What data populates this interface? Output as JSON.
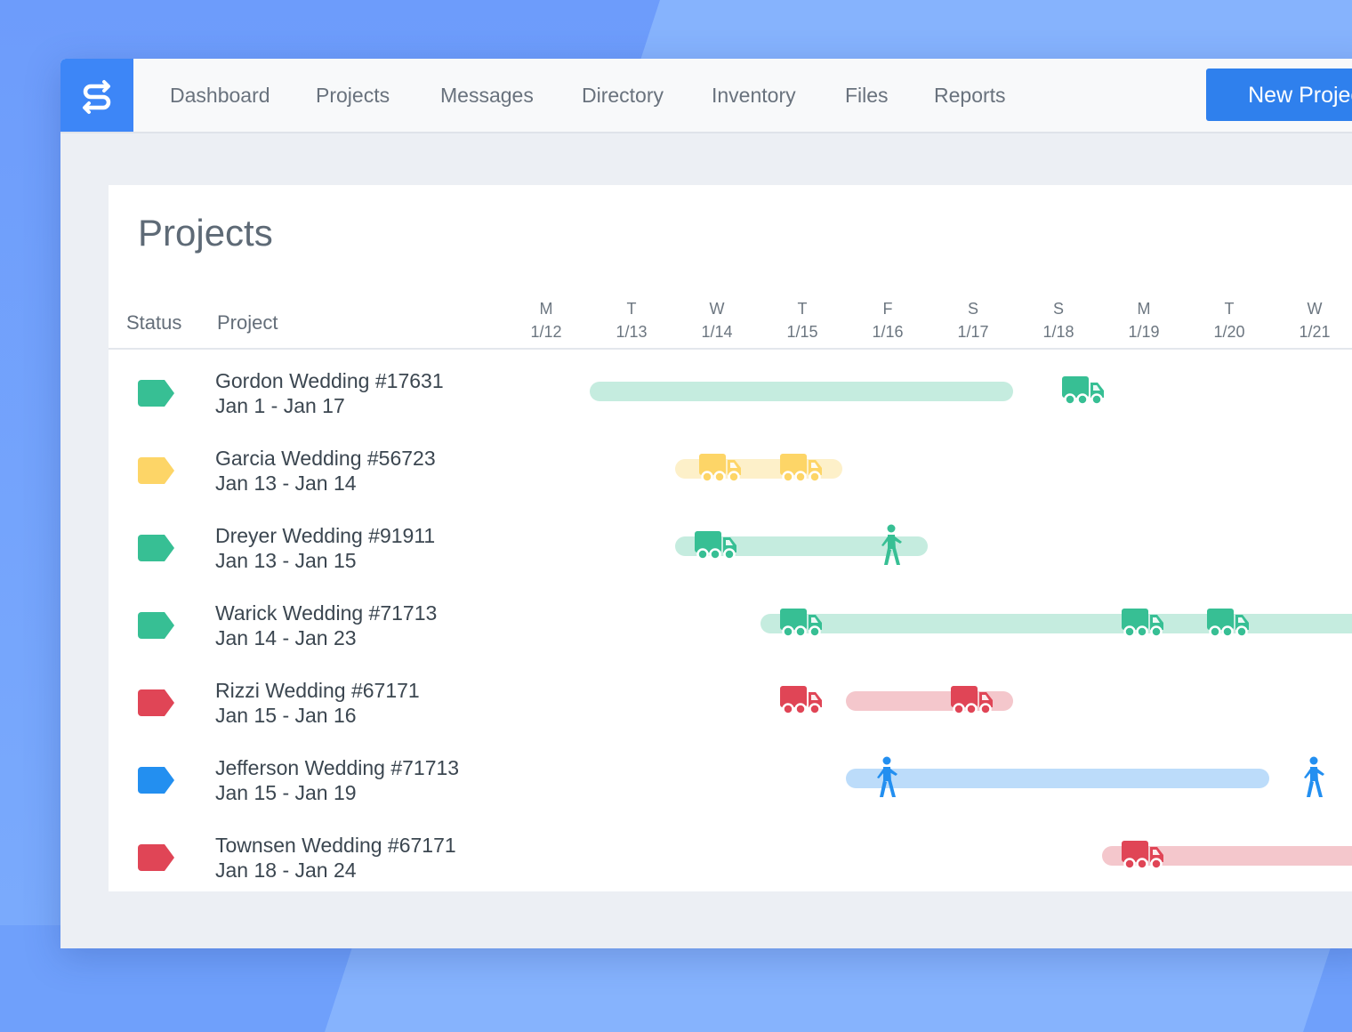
{
  "nav": {
    "items": [
      {
        "label": "Dashboard",
        "active": true
      },
      {
        "label": "Projects",
        "active": false
      },
      {
        "label": "Messages",
        "active": false
      },
      {
        "label": "Directory",
        "active": false
      },
      {
        "label": "Inventory",
        "active": false
      },
      {
        "label": "Files",
        "active": false
      },
      {
        "label": "Reports",
        "active": false
      }
    ],
    "new_button": "New Project"
  },
  "panel": {
    "title": "Projects",
    "columns": {
      "status": "Status",
      "project": "Project"
    }
  },
  "days": [
    {
      "dow": "M",
      "date": "1/12"
    },
    {
      "dow": "T",
      "date": "1/13"
    },
    {
      "dow": "W",
      "date": "1/14"
    },
    {
      "dow": "T",
      "date": "1/15"
    },
    {
      "dow": "F",
      "date": "1/16"
    },
    {
      "dow": "S",
      "date": "1/17"
    },
    {
      "dow": "S",
      "date": "1/18"
    },
    {
      "dow": "M",
      "date": "1/19"
    },
    {
      "dow": "T",
      "date": "1/20"
    },
    {
      "dow": "W",
      "date": "1/21"
    }
  ],
  "colors": {
    "green": "#37bf94",
    "green_light": "#c5ecdf",
    "yellow": "#fdd567",
    "yellow_light": "#fdf0c9",
    "red": "#e04556",
    "red_light": "#f4c7cc",
    "blue": "#238ff0",
    "blue_light": "#bcdcfa"
  },
  "projects": [
    {
      "name": "Gordon Wedding #17631",
      "dates": "Jan 1 - Jan 17",
      "status": "green",
      "bar_start": 1,
      "bar_end": 6,
      "events": [
        {
          "type": "truck-icon",
          "day": 6.8
        }
      ]
    },
    {
      "name": "Garcia Wedding #56723",
      "dates": "Jan 13 - Jan 14",
      "status": "yellow",
      "bar_start": 2,
      "bar_end": 4,
      "events": [
        {
          "type": "truck-icon",
          "day": 2.55
        },
        {
          "type": "truck-icon",
          "day": 3.5
        }
      ]
    },
    {
      "name": "Dreyer Wedding #91911",
      "dates": "Jan 13 - Jan 15",
      "status": "green",
      "bar_start": 2,
      "bar_end": 5,
      "events": [
        {
          "type": "truck-icon",
          "day": 2.5
        },
        {
          "type": "person-icon",
          "day": 4.55
        }
      ]
    },
    {
      "name": "Warick Wedding #71713",
      "dates": "Jan 14 - Jan 23",
      "status": "green",
      "bar_start": 3,
      "bar_end": 12,
      "events": [
        {
          "type": "truck-icon",
          "day": 3.5
        },
        {
          "type": "truck-icon",
          "day": 7.5
        },
        {
          "type": "truck-icon",
          "day": 8.5
        }
      ]
    },
    {
      "name": "Rizzi Wedding #67171",
      "dates": "Jan 15 - Jan 16",
      "status": "red",
      "bar_start": 4,
      "bar_end": 6,
      "events": [
        {
          "type": "truck-icon",
          "day": 3.5
        },
        {
          "type": "truck-icon",
          "day": 5.5
        }
      ]
    },
    {
      "name": "Jefferson Wedding #71713",
      "dates": "Jan 15 - Jan 19",
      "status": "blue",
      "bar_start": 4,
      "bar_end": 9,
      "events": [
        {
          "type": "person-icon",
          "day": 4.5
        },
        {
          "type": "person-icon",
          "day": 9.5
        }
      ]
    },
    {
      "name": "Townsen Wedding #67171",
      "dates": "Jan 18 - Jan 24",
      "status": "red",
      "bar_start": 7,
      "bar_end": 14,
      "events": [
        {
          "type": "truck-icon",
          "day": 7.5
        }
      ]
    }
  ]
}
